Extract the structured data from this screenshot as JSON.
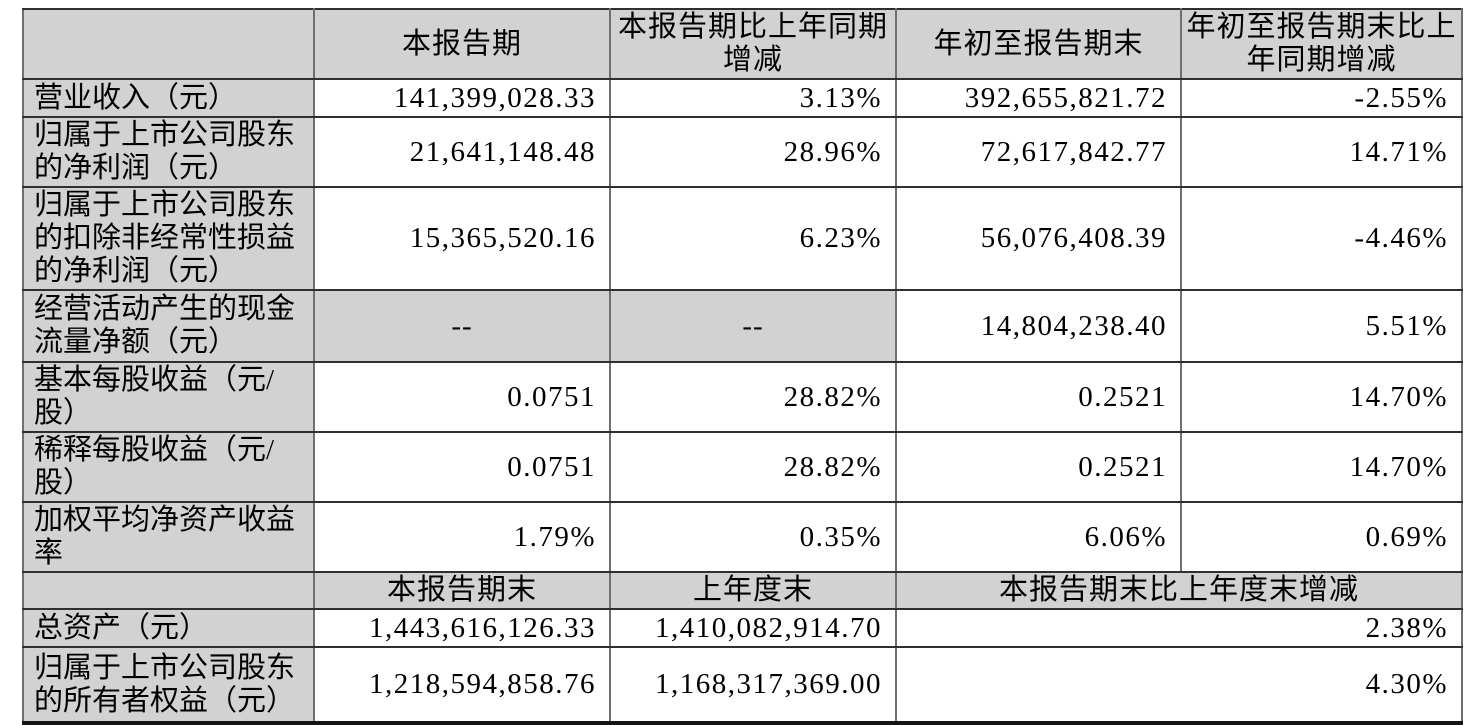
{
  "table": {
    "colors": {
      "header_bg": "#d2d2d2",
      "rule_horizontal": "#2f2f2f",
      "rule_vertical": "#6f6f6f",
      "bottom_border": "#141414"
    },
    "header1": {
      "empty": "",
      "current_period": "本报告期",
      "current_period_yoy": "本报告期比上年同期增减",
      "ytd": "年初至报告期末",
      "ytd_yoy": "年初至报告期末比上年同期增减"
    },
    "rows1": [
      {
        "label": "营业收入（元）",
        "current": "141,399,028.33",
        "yoy": "3.13%",
        "ytd": "392,655,821.72",
        "ytd_yoy": "-2.55%"
      },
      {
        "label": "归属于上市公司股东的净利润（元）",
        "current": "21,641,148.48",
        "yoy": "28.96%",
        "ytd": "72,617,842.77",
        "ytd_yoy": "14.71%"
      },
      {
        "label": "归属于上市公司股东的扣除非经常性损益的净利润（元）",
        "current": "15,365,520.16",
        "yoy": "6.23%",
        "ytd": "56,076,408.39",
        "ytd_yoy": "-4.46%"
      },
      {
        "label": "经营活动产生的现金流量净额（元）",
        "current": "--",
        "yoy": "--",
        "ytd": "14,804,238.40",
        "ytd_yoy": "5.51%"
      },
      {
        "label": "基本每股收益（元/股）",
        "current": "0.0751",
        "yoy": "28.82%",
        "ytd": "0.2521",
        "ytd_yoy": "14.70%"
      },
      {
        "label": "稀释每股收益（元/股）",
        "current": "0.0751",
        "yoy": "28.82%",
        "ytd": "0.2521",
        "ytd_yoy": "14.70%"
      },
      {
        "label": "加权平均净资产收益率",
        "current": "1.79%",
        "yoy": "0.35%",
        "ytd": "6.06%",
        "ytd_yoy": "0.69%"
      }
    ],
    "header2": {
      "empty": "",
      "period_end": "本报告期末",
      "prev_year_end": "上年度末",
      "change": "本报告期末比上年度末增减"
    },
    "rows2": [
      {
        "label": "总资产（元）",
        "period_end": "1,443,616,126.33",
        "prev_year_end": "1,410,082,914.70",
        "change": "2.38%"
      },
      {
        "label": "归属于上市公司股东的所有者权益（元）",
        "period_end": "1,218,594,858.76",
        "prev_year_end": "1,168,317,369.00",
        "change": "4.30%"
      }
    ]
  }
}
